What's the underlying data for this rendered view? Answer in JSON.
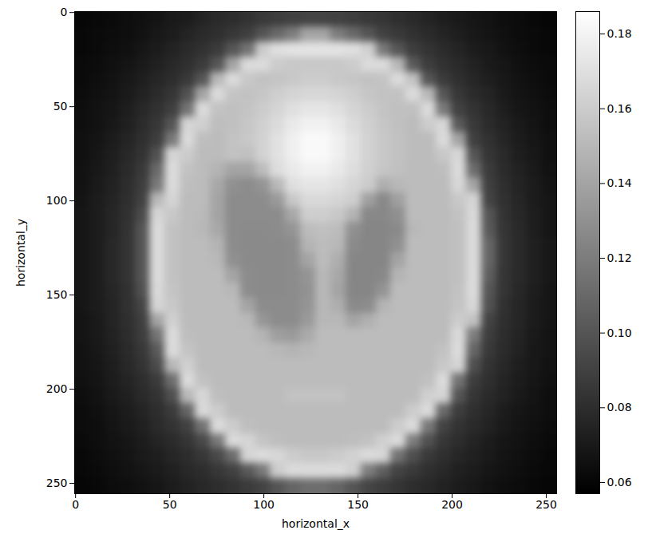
{
  "chart_data": {
    "type": "heatmap",
    "x_label": "horizontal_x",
    "y_label": "horizontal_y",
    "xlim": [
      -0.5,
      255.5
    ],
    "ylim": [
      255.5,
      -0.5
    ],
    "xticks": [
      0,
      50,
      100,
      150,
      200,
      250
    ],
    "yticks": [
      0,
      50,
      100,
      150,
      200,
      250
    ],
    "grid": false,
    "x": [
      3.5,
      11.5,
      19.5,
      27.5,
      35.5,
      43.5,
      51.5,
      59.5,
      67.5,
      75.5,
      83.5,
      91.5,
      99.5,
      107.5,
      115.5,
      123.5,
      131.5,
      139.5,
      147.5,
      155.5,
      163.5,
      171.5,
      179.5,
      187.5,
      195.5,
      203.5,
      211.5,
      219.5,
      227.5,
      235.5,
      243.5,
      251.5
    ],
    "y": [
      3.5,
      11.5,
      19.5,
      27.5,
      35.5,
      43.5,
      51.5,
      59.5,
      67.5,
      75.5,
      83.5,
      91.5,
      99.5,
      107.5,
      115.5,
      123.5,
      131.5,
      139.5,
      147.5,
      155.5,
      163.5,
      171.5,
      179.5,
      187.5,
      195.5,
      203.5,
      211.5,
      219.5,
      227.5,
      235.5,
      243.5,
      251.5
    ],
    "cells": [
      [
        0.06,
        0.061,
        0.062,
        0.064,
        0.065,
        0.067,
        0.07,
        0.071,
        0.075,
        0.078,
        0.08,
        0.083,
        0.086,
        0.088,
        0.09,
        0.091,
        0.091,
        0.09,
        0.088,
        0.086,
        0.084,
        0.081,
        0.078,
        0.075,
        0.072,
        0.07,
        0.068,
        0.066,
        0.064,
        0.063,
        0.061,
        0.06
      ],
      [
        0.061,
        0.062,
        0.063,
        0.064,
        0.066,
        0.069,
        0.071,
        0.075,
        0.078,
        0.081,
        0.085,
        0.089,
        0.1,
        0.11,
        0.12,
        0.14,
        0.14,
        0.12,
        0.11,
        0.1,
        0.09,
        0.086,
        0.082,
        0.079,
        0.075,
        0.072,
        0.069,
        0.067,
        0.065,
        0.063,
        0.062,
        0.061
      ],
      [
        0.061,
        0.062,
        0.064,
        0.065,
        0.068,
        0.071,
        0.074,
        0.078,
        0.082,
        0.087,
        0.1,
        0.115,
        0.16,
        0.17,
        0.172,
        0.172,
        0.172,
        0.172,
        0.17,
        0.162,
        0.118,
        0.1,
        0.088,
        0.083,
        0.079,
        0.075,
        0.071,
        0.069,
        0.066,
        0.064,
        0.062,
        0.061
      ],
      [
        0.062,
        0.063,
        0.065,
        0.067,
        0.07,
        0.073,
        0.077,
        0.081,
        0.087,
        0.1,
        0.14,
        0.168,
        0.168,
        0.16,
        0.158,
        0.158,
        0.158,
        0.158,
        0.16,
        0.168,
        0.168,
        0.15,
        0.102,
        0.088,
        0.082,
        0.078,
        0.074,
        0.07,
        0.068,
        0.065,
        0.063,
        0.062
      ],
      [
        0.062,
        0.064,
        0.066,
        0.069,
        0.072,
        0.076,
        0.08,
        0.086,
        0.1,
        0.15,
        0.168,
        0.158,
        0.155,
        0.156,
        0.158,
        0.16,
        0.16,
        0.158,
        0.157,
        0.155,
        0.156,
        0.168,
        0.155,
        0.1,
        0.087,
        0.081,
        0.076,
        0.072,
        0.069,
        0.066,
        0.064,
        0.062
      ],
      [
        0.063,
        0.065,
        0.067,
        0.07,
        0.074,
        0.079,
        0.084,
        0.098,
        0.14,
        0.168,
        0.156,
        0.155,
        0.157,
        0.161,
        0.164,
        0.166,
        0.166,
        0.164,
        0.161,
        0.157,
        0.155,
        0.155,
        0.168,
        0.15,
        0.1,
        0.085,
        0.079,
        0.075,
        0.07,
        0.067,
        0.065,
        0.063
      ],
      [
        0.064,
        0.066,
        0.068,
        0.072,
        0.077,
        0.082,
        0.089,
        0.115,
        0.168,
        0.155,
        0.154,
        0.156,
        0.16,
        0.165,
        0.17,
        0.173,
        0.173,
        0.17,
        0.165,
        0.16,
        0.156,
        0.154,
        0.154,
        0.168,
        0.118,
        0.09,
        0.083,
        0.077,
        0.072,
        0.068,
        0.066,
        0.064
      ],
      [
        0.064,
        0.066,
        0.069,
        0.073,
        0.079,
        0.085,
        0.1,
        0.165,
        0.162,
        0.153,
        0.154,
        0.157,
        0.162,
        0.168,
        0.175,
        0.179,
        0.179,
        0.175,
        0.168,
        0.162,
        0.157,
        0.154,
        0.152,
        0.16,
        0.166,
        0.102,
        0.086,
        0.079,
        0.074,
        0.07,
        0.067,
        0.064
      ],
      [
        0.065,
        0.067,
        0.071,
        0.075,
        0.081,
        0.088,
        0.118,
        0.168,
        0.153,
        0.152,
        0.155,
        0.158,
        0.163,
        0.171,
        0.178,
        0.183,
        0.183,
        0.178,
        0.171,
        0.163,
        0.158,
        0.155,
        0.152,
        0.152,
        0.168,
        0.14,
        0.089,
        0.082,
        0.076,
        0.071,
        0.068,
        0.065
      ],
      [
        0.065,
        0.068,
        0.072,
        0.077,
        0.083,
        0.098,
        0.165,
        0.16,
        0.152,
        0.152,
        0.155,
        0.154,
        0.163,
        0.171,
        0.178,
        0.183,
        0.183,
        0.178,
        0.171,
        0.163,
        0.158,
        0.155,
        0.152,
        0.152,
        0.158,
        0.166,
        0.1,
        0.084,
        0.078,
        0.072,
        0.069,
        0.065
      ],
      [
        0.066,
        0.069,
        0.073,
        0.079,
        0.086,
        0.11,
        0.168,
        0.155,
        0.152,
        0.148,
        0.14,
        0.14,
        0.152,
        0.169,
        0.175,
        0.179,
        0.179,
        0.175,
        0.169,
        0.162,
        0.157,
        0.154,
        0.152,
        0.152,
        0.153,
        0.168,
        0.112,
        0.087,
        0.079,
        0.074,
        0.07,
        0.066
      ],
      [
        0.066,
        0.07,
        0.074,
        0.08,
        0.088,
        0.118,
        0.168,
        0.153,
        0.152,
        0.142,
        0.13,
        0.128,
        0.132,
        0.15,
        0.17,
        0.173,
        0.173,
        0.17,
        0.165,
        0.16,
        0.145,
        0.15,
        0.152,
        0.152,
        0.152,
        0.166,
        0.14,
        0.089,
        0.081,
        0.075,
        0.071,
        0.067
      ],
      [
        0.067,
        0.071,
        0.075,
        0.081,
        0.09,
        0.15,
        0.165,
        0.152,
        0.152,
        0.14,
        0.128,
        0.128,
        0.128,
        0.135,
        0.158,
        0.167,
        0.167,
        0.165,
        0.161,
        0.138,
        0.126,
        0.138,
        0.152,
        0.152,
        0.152,
        0.158,
        0.165,
        0.091,
        0.082,
        0.076,
        0.071,
        0.068
      ],
      [
        0.068,
        0.071,
        0.076,
        0.082,
        0.095,
        0.165,
        0.158,
        0.152,
        0.151,
        0.14,
        0.128,
        0.128,
        0.128,
        0.128,
        0.142,
        0.161,
        0.161,
        0.158,
        0.148,
        0.126,
        0.126,
        0.13,
        0.152,
        0.152,
        0.152,
        0.155,
        0.167,
        0.1,
        0.083,
        0.077,
        0.072,
        0.068
      ],
      [
        0.068,
        0.071,
        0.076,
        0.083,
        0.1,
        0.168,
        0.155,
        0.152,
        0.15,
        0.142,
        0.128,
        0.127,
        0.127,
        0.128,
        0.132,
        0.152,
        0.154,
        0.152,
        0.13,
        0.125,
        0.125,
        0.127,
        0.15,
        0.152,
        0.152,
        0.154,
        0.168,
        0.102,
        0.084,
        0.078,
        0.072,
        0.068
      ],
      [
        0.068,
        0.071,
        0.077,
        0.083,
        0.1,
        0.168,
        0.155,
        0.152,
        0.152,
        0.148,
        0.128,
        0.127,
        0.127,
        0.127,
        0.128,
        0.148,
        0.152,
        0.15,
        0.127,
        0.125,
        0.125,
        0.13,
        0.152,
        0.152,
        0.152,
        0.154,
        0.168,
        0.108,
        0.085,
        0.078,
        0.073,
        0.069
      ],
      [
        0.068,
        0.071,
        0.077,
        0.083,
        0.1,
        0.168,
        0.155,
        0.152,
        0.152,
        0.15,
        0.13,
        0.127,
        0.127,
        0.127,
        0.128,
        0.14,
        0.152,
        0.145,
        0.125,
        0.125,
        0.125,
        0.14,
        0.152,
        0.152,
        0.152,
        0.154,
        0.168,
        0.108,
        0.085,
        0.078,
        0.073,
        0.069
      ],
      [
        0.068,
        0.071,
        0.077,
        0.083,
        0.1,
        0.168,
        0.155,
        0.152,
        0.152,
        0.152,
        0.14,
        0.128,
        0.127,
        0.127,
        0.128,
        0.132,
        0.15,
        0.142,
        0.125,
        0.125,
        0.126,
        0.148,
        0.152,
        0.152,
        0.152,
        0.154,
        0.168,
        0.105,
        0.084,
        0.078,
        0.073,
        0.069
      ],
      [
        0.068,
        0.071,
        0.076,
        0.082,
        0.098,
        0.167,
        0.156,
        0.152,
        0.152,
        0.152,
        0.15,
        0.128,
        0.127,
        0.127,
        0.128,
        0.131,
        0.15,
        0.14,
        0.125,
        0.125,
        0.132,
        0.152,
        0.152,
        0.152,
        0.152,
        0.155,
        0.168,
        0.1,
        0.084,
        0.077,
        0.072,
        0.068
      ],
      [
        0.068,
        0.071,
        0.075,
        0.082,
        0.092,
        0.165,
        0.158,
        0.152,
        0.152,
        0.152,
        0.152,
        0.14,
        0.128,
        0.128,
        0.128,
        0.132,
        0.15,
        0.145,
        0.127,
        0.128,
        0.148,
        0.152,
        0.152,
        0.152,
        0.152,
        0.156,
        0.166,
        0.098,
        0.082,
        0.076,
        0.071,
        0.068
      ],
      [
        0.067,
        0.07,
        0.075,
        0.081,
        0.089,
        0.14,
        0.162,
        0.152,
        0.152,
        0.152,
        0.152,
        0.15,
        0.133,
        0.128,
        0.128,
        0.135,
        0.15,
        0.15,
        0.14,
        0.146,
        0.152,
        0.152,
        0.152,
        0.152,
        0.152,
        0.16,
        0.155,
        0.091,
        0.081,
        0.076,
        0.071,
        0.068
      ],
      [
        0.067,
        0.07,
        0.074,
        0.08,
        0.088,
        0.115,
        0.168,
        0.153,
        0.152,
        0.152,
        0.152,
        0.152,
        0.148,
        0.137,
        0.135,
        0.143,
        0.152,
        0.152,
        0.152,
        0.152,
        0.152,
        0.152,
        0.152,
        0.152,
        0.152,
        0.167,
        0.12,
        0.088,
        0.08,
        0.075,
        0.07,
        0.067
      ],
      [
        0.066,
        0.069,
        0.073,
        0.078,
        0.085,
        0.102,
        0.168,
        0.156,
        0.152,
        0.152,
        0.152,
        0.152,
        0.152,
        0.15,
        0.148,
        0.15,
        0.152,
        0.152,
        0.152,
        0.152,
        0.152,
        0.152,
        0.152,
        0.152,
        0.155,
        0.168,
        0.108,
        0.086,
        0.079,
        0.074,
        0.069,
        0.067
      ],
      [
        0.066,
        0.068,
        0.072,
        0.077,
        0.083,
        0.095,
        0.15,
        0.162,
        0.152,
        0.152,
        0.152,
        0.152,
        0.152,
        0.152,
        0.152,
        0.152,
        0.152,
        0.152,
        0.152,
        0.152,
        0.152,
        0.152,
        0.152,
        0.152,
        0.158,
        0.165,
        0.097,
        0.083,
        0.077,
        0.072,
        0.069,
        0.066
      ],
      [
        0.065,
        0.067,
        0.071,
        0.075,
        0.08,
        0.087,
        0.112,
        0.168,
        0.155,
        0.152,
        0.152,
        0.152,
        0.152,
        0.152,
        0.152,
        0.152,
        0.152,
        0.152,
        0.152,
        0.152,
        0.152,
        0.152,
        0.152,
        0.154,
        0.168,
        0.115,
        0.088,
        0.081,
        0.075,
        0.071,
        0.068,
        0.065
      ],
      [
        0.064,
        0.066,
        0.07,
        0.073,
        0.078,
        0.083,
        0.097,
        0.15,
        0.166,
        0.153,
        0.152,
        0.152,
        0.152,
        0.152,
        0.155,
        0.155,
        0.155,
        0.155,
        0.152,
        0.152,
        0.152,
        0.152,
        0.152,
        0.162,
        0.165,
        0.1,
        0.084,
        0.078,
        0.074,
        0.07,
        0.067,
        0.064
      ],
      [
        0.063,
        0.065,
        0.068,
        0.071,
        0.075,
        0.08,
        0.087,
        0.108,
        0.167,
        0.16,
        0.152,
        0.152,
        0.152,
        0.152,
        0.152,
        0.152,
        0.152,
        0.152,
        0.152,
        0.152,
        0.152,
        0.152,
        0.16,
        0.168,
        0.11,
        0.088,
        0.081,
        0.076,
        0.071,
        0.068,
        0.066,
        0.064
      ],
      [
        0.063,
        0.064,
        0.067,
        0.07,
        0.073,
        0.078,
        0.083,
        0.09,
        0.115,
        0.168,
        0.16,
        0.153,
        0.152,
        0.152,
        0.152,
        0.152,
        0.152,
        0.152,
        0.152,
        0.152,
        0.152,
        0.16,
        0.168,
        0.118,
        0.091,
        0.083,
        0.078,
        0.074,
        0.07,
        0.067,
        0.065,
        0.063
      ],
      [
        0.062,
        0.064,
        0.066,
        0.068,
        0.071,
        0.075,
        0.079,
        0.084,
        0.094,
        0.118,
        0.168,
        0.165,
        0.156,
        0.153,
        0.152,
        0.152,
        0.152,
        0.152,
        0.153,
        0.155,
        0.162,
        0.168,
        0.12,
        0.098,
        0.085,
        0.08,
        0.075,
        0.071,
        0.068,
        0.066,
        0.064,
        0.062
      ],
      [
        0.061,
        0.063,
        0.065,
        0.067,
        0.07,
        0.072,
        0.076,
        0.08,
        0.085,
        0.094,
        0.112,
        0.165,
        0.168,
        0.166,
        0.16,
        0.158,
        0.158,
        0.16,
        0.163,
        0.168,
        0.166,
        0.115,
        0.097,
        0.086,
        0.081,
        0.076,
        0.073,
        0.07,
        0.067,
        0.065,
        0.063,
        0.061
      ],
      [
        0.061,
        0.062,
        0.064,
        0.066,
        0.068,
        0.07,
        0.073,
        0.077,
        0.08,
        0.085,
        0.09,
        0.102,
        0.118,
        0.16,
        0.168,
        0.168,
        0.168,
        0.168,
        0.162,
        0.12,
        0.105,
        0.091,
        0.086,
        0.081,
        0.077,
        0.073,
        0.071,
        0.068,
        0.066,
        0.064,
        0.062,
        0.061
      ],
      [
        0.06,
        0.061,
        0.063,
        0.064,
        0.066,
        0.068,
        0.071,
        0.074,
        0.077,
        0.08,
        0.083,
        0.087,
        0.091,
        0.1,
        0.108,
        0.112,
        0.112,
        0.108,
        0.1,
        0.092,
        0.088,
        0.084,
        0.08,
        0.077,
        0.074,
        0.071,
        0.069,
        0.066,
        0.064,
        0.063,
        0.061,
        0.06
      ]
    ],
    "colorbar_range": [
      0.057,
      0.186
    ],
    "colorbar_ticks": [
      0.06,
      0.08,
      {
        "value": 0.1,
        "label": "0.10"
      },
      0.12,
      0.14,
      0.16,
      0.18
    ]
  }
}
